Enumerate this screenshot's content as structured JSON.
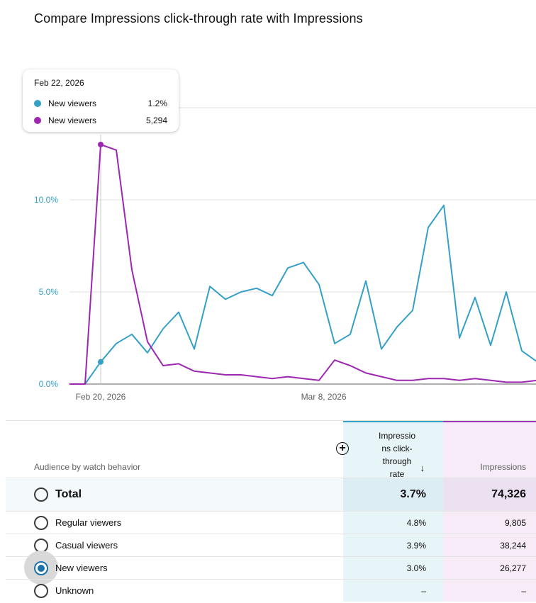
{
  "title": "Compare Impressions click-through rate with Impressions",
  "tooltip": {
    "date": "Feb 22, 2026",
    "rows": [
      {
        "name": "New viewers",
        "value": "1.2%",
        "color": "#34a0c6"
      },
      {
        "name": "New viewers",
        "value": "5,294",
        "color": "#9c27b0"
      }
    ]
  },
  "chart_data": {
    "type": "line",
    "x_ticks": [
      "Feb 20, 2026",
      "Mar 8, 2026"
    ],
    "y_ticks": [
      "0.0%",
      "5.0%",
      "10.0%"
    ],
    "ylim": [
      0,
      15
    ],
    "series": [
      {
        "name": "New viewers",
        "color": "#34a0c6",
        "values": [
          0,
          0,
          1.2,
          2.2,
          2.7,
          1.7,
          3.0,
          3.9,
          1.9,
          5.3,
          4.6,
          5.0,
          5.2,
          4.8,
          6.3,
          6.6,
          5.4,
          2.2,
          2.7,
          5.6,
          1.9,
          3.1,
          4.0,
          8.5,
          9.7,
          2.5,
          4.7,
          2.1,
          5.0,
          1.8,
          1.2
        ]
      },
      {
        "name": "New viewers",
        "color": "#9c27b0",
        "values": [
          0,
          0,
          13.0,
          12.7,
          6.2,
          2.3,
          1.0,
          1.1,
          0.7,
          0.6,
          0.5,
          0.5,
          0.4,
          0.3,
          0.4,
          0.3,
          0.2,
          1.3,
          1.0,
          0.6,
          0.4,
          0.2,
          0.2,
          0.3,
          0.3,
          0.2,
          0.3,
          0.2,
          0.1,
          0.1,
          0.2
        ]
      }
    ],
    "highlight_index": 2
  },
  "table": {
    "header_label": "Audience by watch behavior",
    "col_a_label": "Impressions click-through rate",
    "col_a_lines": [
      "Impressio",
      "ns click-",
      "through",
      "rate"
    ],
    "col_b_label": "Impressions",
    "sort_icon": "arrow-down-icon",
    "add_icon": "add-circle-icon",
    "total": {
      "name": "Total",
      "ctr": "3.7%",
      "impressions": "74,326"
    },
    "rows": [
      {
        "name": "Regular viewers",
        "ctr": "4.8%",
        "impressions": "9,805",
        "selected": false
      },
      {
        "name": "Casual viewers",
        "ctr": "3.9%",
        "impressions": "38,244",
        "selected": false
      },
      {
        "name": "New viewers",
        "ctr": "3.0%",
        "impressions": "26,277",
        "selected": true
      },
      {
        "name": "Unknown",
        "ctr": "–",
        "impressions": "–",
        "selected": false
      }
    ]
  }
}
